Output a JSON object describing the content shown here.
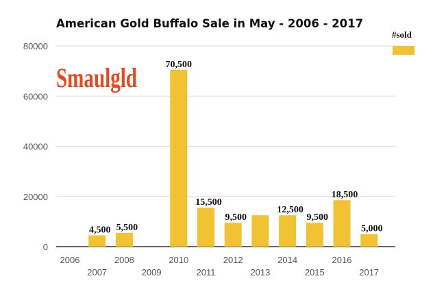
{
  "logo_text": "Smaulgld",
  "chart_data": {
    "type": "bar",
    "title": "American Gold Buffalo Sale in May - 2006 - 2017",
    "categories": [
      "2006",
      "2007",
      "2008",
      "2009",
      "2010",
      "2011",
      "2012",
      "2013",
      "2014",
      "2015",
      "2016",
      "2017"
    ],
    "series": [
      {
        "name": "#sold",
        "color": "#f1c232",
        "values": [
          0,
          4500,
          5500,
          0,
          70500,
          15500,
          9500,
          12500,
          12500,
          9500,
          18500,
          5000
        ],
        "labels": [
          "",
          "4,500",
          "5,500",
          "",
          "70,500",
          "15,500",
          "9,500",
          "",
          "12,500",
          "9,500",
          "18,500",
          "5,000"
        ]
      }
    ],
    "ylim": [
      0,
      80000
    ],
    "yticks": [
      "0",
      "20000",
      "40000",
      "60000",
      "80000"
    ],
    "grid": true,
    "legend": "top-right"
  }
}
